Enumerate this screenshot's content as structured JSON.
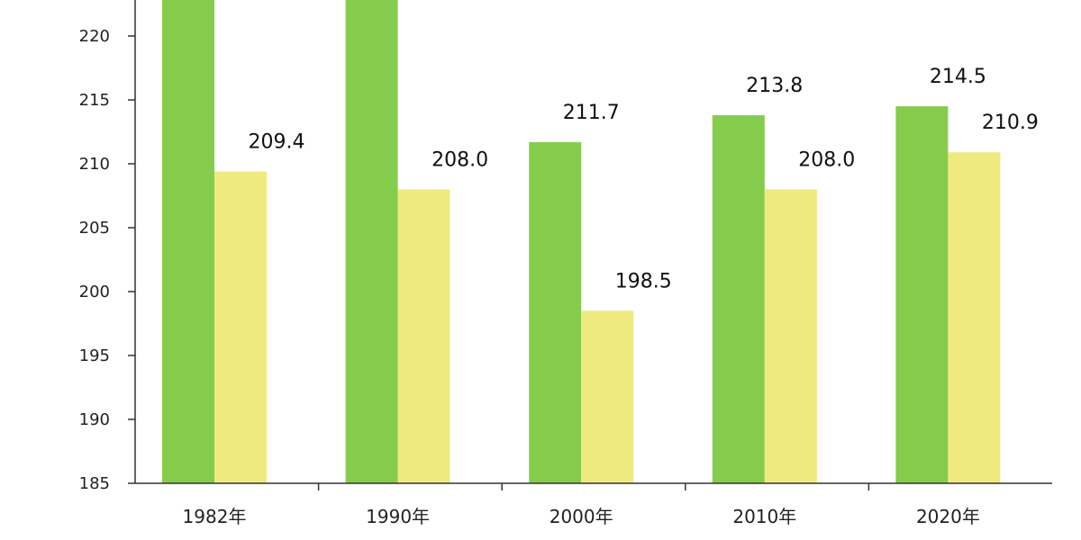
{
  "chart_data": {
    "type": "bar",
    "categories": [
      "1982年",
      "1990年",
      "2000年",
      "2010年",
      "2020年"
    ],
    "series": [
      {
        "color": "#86cc4c",
        "values": [
          225.0,
          225.0,
          211.7,
          213.8,
          214.5
        ],
        "labels": [
          "",
          "",
          "211.7",
          "213.8",
          "214.5"
        ]
      },
      {
        "color": "#eeea80",
        "values": [
          209.4,
          208.0,
          198.5,
          208.0,
          210.9
        ],
        "labels": [
          "209.4",
          "208.0",
          "198.5",
          "208.0",
          "210.9"
        ]
      }
    ],
    "yticks": [
      185,
      190,
      195,
      200,
      205,
      210,
      215,
      220
    ],
    "ylim": [
      185,
      223
    ],
    "grid": false,
    "axis_color": "#333333"
  }
}
